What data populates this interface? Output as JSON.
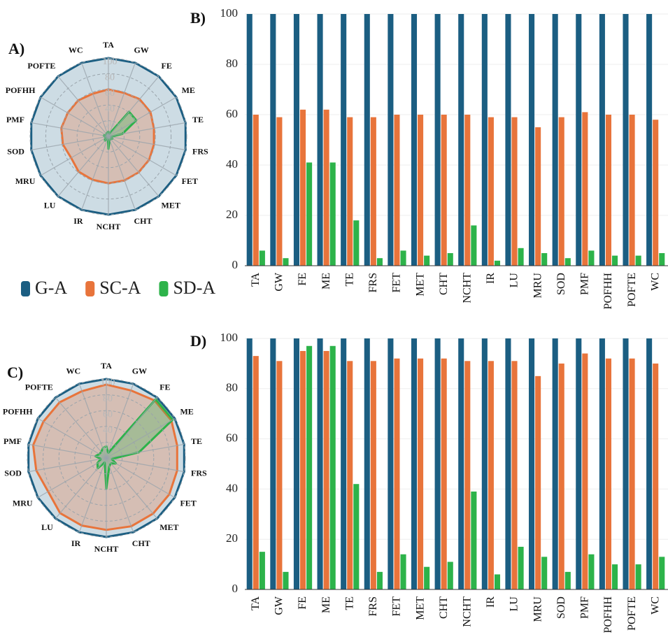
{
  "chart_data": [
    {
      "type": "radar",
      "label": "A)",
      "categories": [
        "TA",
        "GW",
        "FE",
        "ME",
        "TE",
        "FRS",
        "FET",
        "MET",
        "CHT",
        "NCHT",
        "IR",
        "LU",
        "MRU",
        "SOD",
        "PMF",
        "POFHH",
        "POFTE",
        "WC"
      ],
      "series": [
        {
          "name": "G-A",
          "color": "#1b5e82",
          "values": [
            100,
            100,
            100,
            100,
            100,
            100,
            100,
            100,
            100,
            100,
            100,
            100,
            100,
            100,
            100,
            100,
            100,
            100
          ]
        },
        {
          "name": "SC-A",
          "color": "#e8743b",
          "values": [
            60,
            59,
            62,
            62,
            59,
            59,
            60,
            60,
            60,
            60,
            59,
            59,
            55,
            59,
            61,
            60,
            60,
            58
          ]
        },
        {
          "name": "SD-A",
          "color": "#2db34a",
          "values": [
            6,
            3,
            41,
            41,
            18,
            3,
            6,
            4,
            5,
            16,
            2,
            7,
            5,
            3,
            6,
            4,
            4,
            5
          ]
        }
      ],
      "rlim": [
        0,
        100
      ],
      "rticks": [
        20,
        40,
        60,
        80,
        100
      ],
      "legend": true
    },
    {
      "type": "bar",
      "label": "B)",
      "categories": [
        "TA",
        "GW",
        "FE",
        "ME",
        "TE",
        "FRS",
        "FET",
        "MET",
        "CHT",
        "NCHT",
        "IR",
        "LU",
        "MRU",
        "SOD",
        "PMF",
        "POFHH",
        "POFTE",
        "WC"
      ],
      "series": [
        {
          "name": "G-A",
          "color": "#1b5e82",
          "values": [
            100,
            100,
            100,
            100,
            100,
            100,
            100,
            100,
            100,
            100,
            100,
            100,
            100,
            100,
            100,
            100,
            100,
            100
          ]
        },
        {
          "name": "SC-A",
          "color": "#e8743b",
          "values": [
            60,
            59,
            62,
            62,
            59,
            59,
            60,
            60,
            60,
            60,
            59,
            59,
            55,
            59,
            61,
            60,
            60,
            58
          ]
        },
        {
          "name": "SD-A",
          "color": "#2db34a",
          "values": [
            6,
            3,
            41,
            41,
            18,
            3,
            6,
            4,
            5,
            16,
            2,
            7,
            5,
            3,
            6,
            4,
            4,
            5
          ]
        }
      ],
      "ylim": [
        0,
        100
      ],
      "yticks": [
        0,
        20,
        40,
        60,
        80,
        100
      ],
      "grid": true
    },
    {
      "type": "radar",
      "label": "C)",
      "categories": [
        "TA",
        "GW",
        "FE",
        "ME",
        "TE",
        "FRS",
        "FET",
        "MET",
        "CHT",
        "NCHT",
        "IR",
        "LU",
        "MRU",
        "SOD",
        "PMF",
        "POFHH",
        "POFTE",
        "WC"
      ],
      "series": [
        {
          "name": "G-A",
          "color": "#1b5e82",
          "values": [
            100,
            100,
            100,
            100,
            100,
            100,
            100,
            100,
            100,
            100,
            100,
            100,
            100,
            100,
            100,
            100,
            100,
            100
          ]
        },
        {
          "name": "SC-A",
          "color": "#e8743b",
          "values": [
            93,
            91,
            95,
            95,
            91,
            91,
            92,
            92,
            92,
            91,
            91,
            91,
            85,
            90,
            94,
            92,
            92,
            90
          ]
        },
        {
          "name": "SD-A",
          "color": "#2db34a",
          "values": [
            15,
            7,
            97,
            97,
            42,
            7,
            14,
            9,
            11,
            39,
            6,
            17,
            13,
            7,
            14,
            10,
            10,
            13
          ]
        }
      ],
      "rlim": [
        0,
        100
      ],
      "rticks": [
        20,
        40,
        60,
        80,
        100
      ]
    },
    {
      "type": "bar",
      "label": "D)",
      "categories": [
        "TA",
        "GW",
        "FE",
        "ME",
        "TE",
        "FRS",
        "FET",
        "MET",
        "CHT",
        "NCHT",
        "IR",
        "LU",
        "MRU",
        "SOD",
        "PMF",
        "POFHH",
        "POFTE",
        "WC"
      ],
      "series": [
        {
          "name": "G-A",
          "color": "#1b5e82",
          "values": [
            100,
            100,
            100,
            100,
            100,
            100,
            100,
            100,
            100,
            100,
            100,
            100,
            100,
            100,
            100,
            100,
            100,
            100
          ]
        },
        {
          "name": "SC-A",
          "color": "#e8743b",
          "values": [
            93,
            91,
            95,
            95,
            91,
            91,
            92,
            92,
            92,
            91,
            91,
            91,
            85,
            90,
            94,
            92,
            92,
            90
          ]
        },
        {
          "name": "SD-A",
          "color": "#2db34a",
          "values": [
            15,
            7,
            97,
            97,
            42,
            7,
            14,
            9,
            11,
            39,
            6,
            17,
            13,
            7,
            14,
            10,
            10,
            13
          ]
        }
      ],
      "ylim": [
        0,
        100
      ],
      "yticks": [
        0,
        20,
        40,
        60,
        80,
        100
      ],
      "grid": true
    }
  ]
}
